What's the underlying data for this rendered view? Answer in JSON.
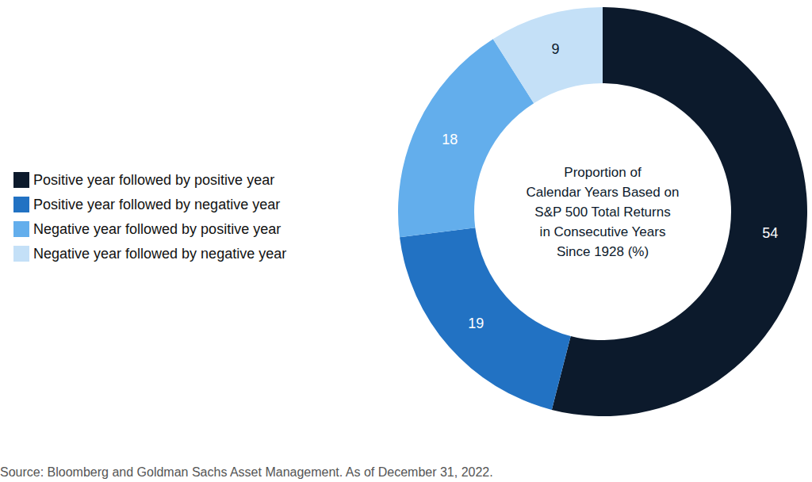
{
  "chart_data": {
    "type": "pie",
    "title": "Proportion of\nCalendar Years Based on\nS&P 500 Total Returns\nin Consecutive Years\nSince 1928 (%)",
    "categories": [
      "Positive year followed by positive year",
      "Positive year followed by negative year",
      "Negative year followed by positive year",
      "Negative year followed by negative year"
    ],
    "values": [
      54,
      19,
      18,
      9
    ],
    "colors": [
      "#0c1a2c",
      "#2272c3",
      "#63aeec",
      "#c4e0f7"
    ],
    "legend": "left",
    "data_labels": true,
    "source": "Source: Bloomberg and Goldman Sachs Asset Management. As of December 31, 2022."
  }
}
